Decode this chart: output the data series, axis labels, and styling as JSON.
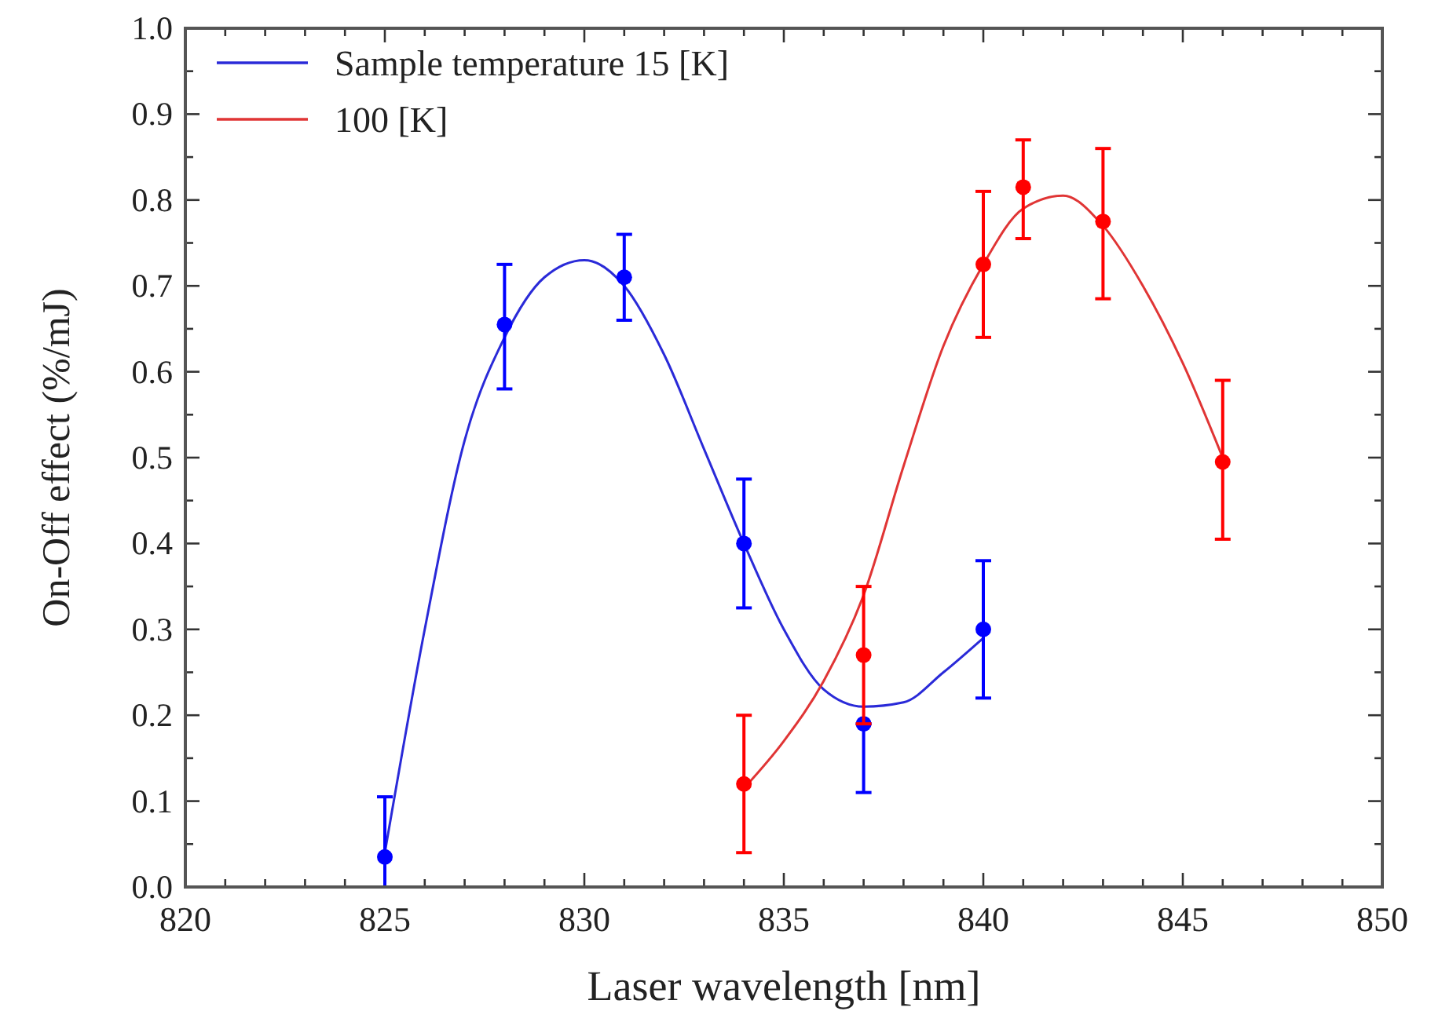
{
  "chart_data": {
    "type": "scatter",
    "xlabel": "Laser wavelength [nm]",
    "ylabel": "On-Off effect (%/mJ)",
    "xlim": [
      820,
      850
    ],
    "xticks": [
      820,
      825,
      830,
      835,
      840,
      845,
      850
    ],
    "ylim": [
      0,
      1.0
    ],
    "yticks": [
      {
        "value": 0,
        "label": "0.0"
      },
      0.1,
      0.2,
      0.3,
      0.4,
      0.5,
      0.6,
      0.7,
      0.8,
      0.9,
      {
        "value": 1.0,
        "label": "1.0"
      }
    ],
    "grid": false,
    "legend": "top left",
    "marker": "circle",
    "series": [
      {
        "type": "line",
        "name": "Sample temperature 15 [K]",
        "color": "#2a2ad8",
        "marker": "none",
        "x": [
          825,
          826,
          827,
          828,
          829,
          830,
          831,
          832,
          833,
          834,
          835,
          836,
          837,
          838,
          839,
          840
        ],
        "values": [
          0.04,
          0.3,
          0.52,
          0.64,
          0.71,
          0.73,
          0.7,
          0.62,
          0.51,
          0.4,
          0.3,
          0.23,
          0.21,
          0.215,
          0.25,
          0.29
        ]
      },
      {
        "type": "line",
        "name": "100 [K]",
        "color": "#e03535",
        "marker": "none",
        "x": [
          834,
          835,
          836,
          837,
          838,
          839,
          840,
          841,
          842,
          843,
          844,
          845,
          846
        ],
        "values": [
          0.115,
          0.17,
          0.24,
          0.34,
          0.49,
          0.63,
          0.725,
          0.79,
          0.805,
          0.77,
          0.7,
          0.61,
          0.5
        ]
      },
      {
        "color": "#0000ff",
        "x": [
          825,
          828,
          831,
          834,
          837,
          840
        ],
        "values": [
          0.035,
          0.655,
          0.71,
          0.4,
          0.19,
          0.3
        ],
        "errors": [
          [
            0,
            0.105
          ],
          [
            0.58,
            0.725
          ],
          [
            0.66,
            0.76
          ],
          [
            0.325,
            0.475
          ],
          [
            0.11,
            0.19
          ],
          [
            0.22,
            0.38
          ]
        ]
      },
      {
        "color": "#ff0000",
        "x": [
          834,
          837,
          840,
          841,
          843,
          846
        ],
        "values": [
          0.12,
          0.27,
          0.725,
          0.815,
          0.775,
          0.495
        ],
        "errors": [
          [
            0.04,
            0.2
          ],
          [
            0.19,
            0.35
          ],
          [
            0.64,
            0.81
          ],
          [
            0.755,
            0.87
          ],
          [
            0.685,
            0.86
          ],
          [
            0.405,
            0.59
          ]
        ]
      }
    ]
  }
}
